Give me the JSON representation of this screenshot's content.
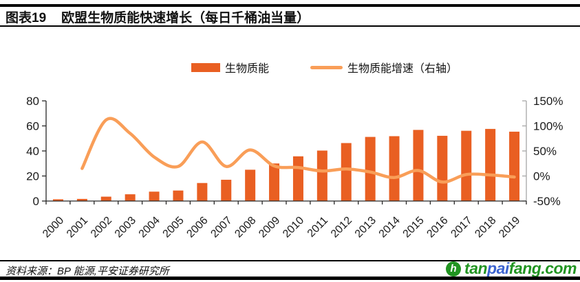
{
  "header": {
    "tag": "图表19",
    "title": "欧盟生物质能快速增长（每日千桶油当量）"
  },
  "legend": [
    {
      "label": "生物质能",
      "type": "bar",
      "color": "#E95F22"
    },
    {
      "label": "生物质能增速（右轴）",
      "type": "line",
      "color": "#F99E58"
    }
  ],
  "chart_data": {
    "type": "bar+line",
    "title": "欧盟生物质能快速增长（每日千桶油当量）",
    "categories": [
      "2000",
      "2001",
      "2002",
      "2003",
      "2004",
      "2005",
      "2006",
      "2007",
      "2008",
      "2009",
      "2010",
      "2011",
      "2012",
      "2013",
      "2014",
      "2015",
      "2016",
      "2017",
      "2018",
      "2019"
    ],
    "series": [
      {
        "name": "生物质能",
        "type": "bar",
        "axis": "left",
        "color": "#E95F22",
        "values": [
          1.4,
          1.7,
          3.5,
          5.4,
          7.5,
          8.4,
          14.4,
          17.0,
          25.0,
          30.0,
          35.7,
          40.3,
          46.3,
          51.2,
          51.8,
          56.8,
          52.1,
          56.1,
          57.6,
          55.4
        ]
      },
      {
        "name": "生物质能增速（右轴）",
        "type": "line",
        "axis": "right",
        "color": "#F99E58",
        "values": [
          null,
          15,
          112,
          85,
          38,
          19,
          68,
          19,
          52,
          20,
          17,
          10,
          14,
          8,
          -3,
          11,
          -12,
          3,
          2,
          -2
        ]
      }
    ],
    "left_axis": {
      "min": 0,
      "max": 80,
      "ticks": [
        0,
        20,
        40,
        60,
        80
      ],
      "tick_suffix": ""
    },
    "right_axis": {
      "min": -50,
      "max": 150,
      "ticks": [
        -50,
        0,
        50,
        100,
        150
      ],
      "tick_suffix": "%"
    },
    "grid": false,
    "legend_position": "top",
    "axis_color": "#262626",
    "right_axis_color": "#A6A6A6"
  },
  "footer": {
    "source": "资料来源：BP 能源,平安证券研究所"
  },
  "logo": {
    "icon": "tanpaifang-leaf-icon",
    "icon_letter": "h",
    "icon_color": "#219421",
    "parts": [
      {
        "text": "tan",
        "color": "#219421"
      },
      {
        "text": "pai",
        "color": "#3C64D0"
      },
      {
        "text": "fang.com",
        "color": "#219421"
      }
    ]
  }
}
